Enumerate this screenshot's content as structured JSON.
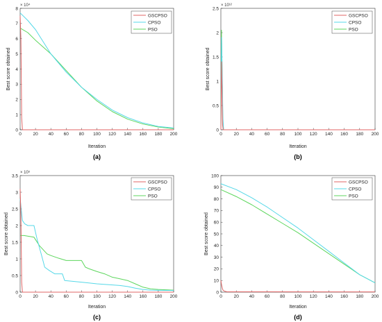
{
  "chart_data": [
    {
      "panel": "(a)",
      "type": "line",
      "xlabel": "Iteration",
      "ylabel": "Best score obtained",
      "xlim": [
        0,
        200
      ],
      "ylim": [
        0,
        80000
      ],
      "x_ticks": [
        0,
        20,
        40,
        60,
        80,
        100,
        120,
        140,
        160,
        180,
        200
      ],
      "y_ticks": [
        0,
        10000,
        20000,
        30000,
        40000,
        50000,
        60000,
        70000,
        80000
      ],
      "y_tick_labels": [
        "0",
        "1",
        "2",
        "3",
        "4",
        "5",
        "6",
        "7",
        "8"
      ],
      "y_exponent": "× 10⁴",
      "legend": "top-right",
      "series": [
        {
          "name": "GSCPSO",
          "color": "#e06666",
          "x": [
            0,
            1,
            2,
            3,
            200
          ],
          "y": [
            75000,
            60000,
            8000,
            0,
            0
          ]
        },
        {
          "name": "CPSO",
          "color": "#55d8e8",
          "x": [
            0,
            10,
            20,
            40,
            60,
            80,
            100,
            120,
            140,
            160,
            180,
            200
          ],
          "y": [
            77000,
            72000,
            66000,
            50000,
            38000,
            28000,
            20000,
            13000,
            8000,
            4500,
            2200,
            1200
          ]
        },
        {
          "name": "PSO",
          "color": "#5cd65c",
          "x": [
            0,
            10,
            20,
            40,
            60,
            80,
            100,
            120,
            140,
            160,
            180,
            200
          ],
          "y": [
            67000,
            64000,
            59000,
            50000,
            39000,
            28000,
            19000,
            12000,
            7000,
            3800,
            1800,
            700
          ]
        }
      ]
    },
    {
      "panel": "(b)",
      "type": "line",
      "xlabel": "Iteration",
      "ylabel": "Best score obtained",
      "xlim": [
        0,
        200
      ],
      "ylim": [
        0,
        2500000000000
      ],
      "x_ticks": [
        0,
        20,
        40,
        60,
        80,
        100,
        120,
        140,
        160,
        180,
        200
      ],
      "y_ticks": [
        0,
        500000000000,
        1000000000000,
        1500000000000,
        2000000000000,
        2500000000000
      ],
      "y_tick_labels": [
        "0",
        "0.5",
        "1",
        "1.5",
        "2",
        "2.5"
      ],
      "y_exponent": "× 10¹²",
      "legend": "top-right",
      "series": [
        {
          "name": "GSCPSO",
          "color": "#e06666",
          "x": [
            0,
            1,
            1.6,
            2.2,
            3,
            200
          ],
          "y": [
            0,
            1400000000000,
            800000000000,
            100000000000,
            0,
            0
          ]
        },
        {
          "name": "CPSO",
          "color": "#55d8e8",
          "x": [
            0,
            1,
            1.8,
            2.6,
            3.5,
            200
          ],
          "y": [
            0,
            1900000000000,
            1100000000000,
            250000000000,
            0,
            0
          ]
        },
        {
          "name": "PSO",
          "color": "#5cd65c",
          "x": [
            0,
            0.8,
            1.5,
            2.5,
            3.5,
            200
          ],
          "y": [
            0,
            2050000000000,
            1300000000000,
            200000000000,
            0,
            0
          ]
        }
      ]
    },
    {
      "panel": "(c)",
      "type": "line",
      "xlabel": "Iteration",
      "ylabel": "Best score obtained",
      "xlim": [
        0,
        200
      ],
      "ylim": [
        0,
        350000
      ],
      "x_ticks": [
        0,
        20,
        40,
        60,
        80,
        100,
        120,
        140,
        160,
        180,
        200
      ],
      "y_ticks": [
        0,
        50000,
        100000,
        150000,
        200000,
        250000,
        300000,
        350000
      ],
      "y_tick_labels": [
        "0",
        "0.5",
        "1",
        "1.5",
        "2",
        "2.5",
        "3",
        "3.5"
      ],
      "y_exponent": "× 10⁵",
      "legend": "top-right",
      "series": [
        {
          "name": "GSCPSO",
          "color": "#e06666",
          "x": [
            0,
            1,
            2,
            3,
            200
          ],
          "y": [
            310000,
            230000,
            30000,
            0,
            0
          ]
        },
        {
          "name": "CPSO",
          "color": "#55d8e8",
          "x": [
            0,
            3,
            6,
            10,
            18,
            22,
            28,
            32,
            38,
            45,
            55,
            58,
            80,
            100,
            130,
            140,
            150,
            160,
            170,
            200
          ],
          "y": [
            280000,
            215000,
            205000,
            200000,
            200000,
            160000,
            110000,
            75000,
            65000,
            55000,
            55000,
            35000,
            30000,
            25000,
            20000,
            17000,
            12000,
            8000,
            6000,
            5000
          ]
        },
        {
          "name": "PSO",
          "color": "#5cd65c",
          "x": [
            0,
            5,
            18,
            25,
            35,
            40,
            50,
            60,
            80,
            85,
            90,
            100,
            110,
            120,
            130,
            140,
            150,
            160,
            170,
            180,
            200
          ],
          "y": [
            170000,
            170000,
            165000,
            140000,
            115000,
            110000,
            102000,
            95000,
            95000,
            75000,
            70000,
            62000,
            55000,
            45000,
            40000,
            35000,
            25000,
            15000,
            10000,
            8000,
            6000
          ]
        }
      ]
    },
    {
      "panel": "(d)",
      "type": "line",
      "xlabel": "Iteration",
      "ylabel": "Best score obtained",
      "xlim": [
        0,
        200
      ],
      "ylim": [
        0,
        100
      ],
      "x_ticks": [
        0,
        20,
        40,
        60,
        80,
        100,
        120,
        140,
        160,
        180,
        200
      ],
      "y_ticks": [
        0,
        10,
        20,
        30,
        40,
        50,
        60,
        70,
        80,
        90,
        100
      ],
      "y_tick_labels": [
        "0",
        "10",
        "20",
        "30",
        "40",
        "50",
        "60",
        "70",
        "80",
        "90",
        "100"
      ],
      "y_exponent": "",
      "legend": "top-right",
      "series": [
        {
          "name": "GSCPSO",
          "color": "#e06666",
          "x": [
            0,
            1,
            2,
            3,
            5,
            8,
            200
          ],
          "y": [
            10,
            6,
            3,
            1.5,
            0.8,
            0.3,
            0.2
          ]
        },
        {
          "name": "CPSO",
          "color": "#55d8e8",
          "x": [
            0,
            20,
            40,
            60,
            80,
            100,
            120,
            140,
            160,
            180,
            200
          ],
          "y": [
            93,
            88,
            81,
            73,
            64,
            55,
            45,
            35,
            25,
            15,
            8
          ]
        },
        {
          "name": "PSO",
          "color": "#5cd65c",
          "x": [
            0,
            20,
            40,
            60,
            80,
            100,
            120,
            140,
            160,
            180,
            200
          ],
          "y": [
            88,
            82,
            75,
            67,
            59,
            51,
            42,
            33,
            24,
            15,
            8
          ]
        }
      ]
    }
  ]
}
